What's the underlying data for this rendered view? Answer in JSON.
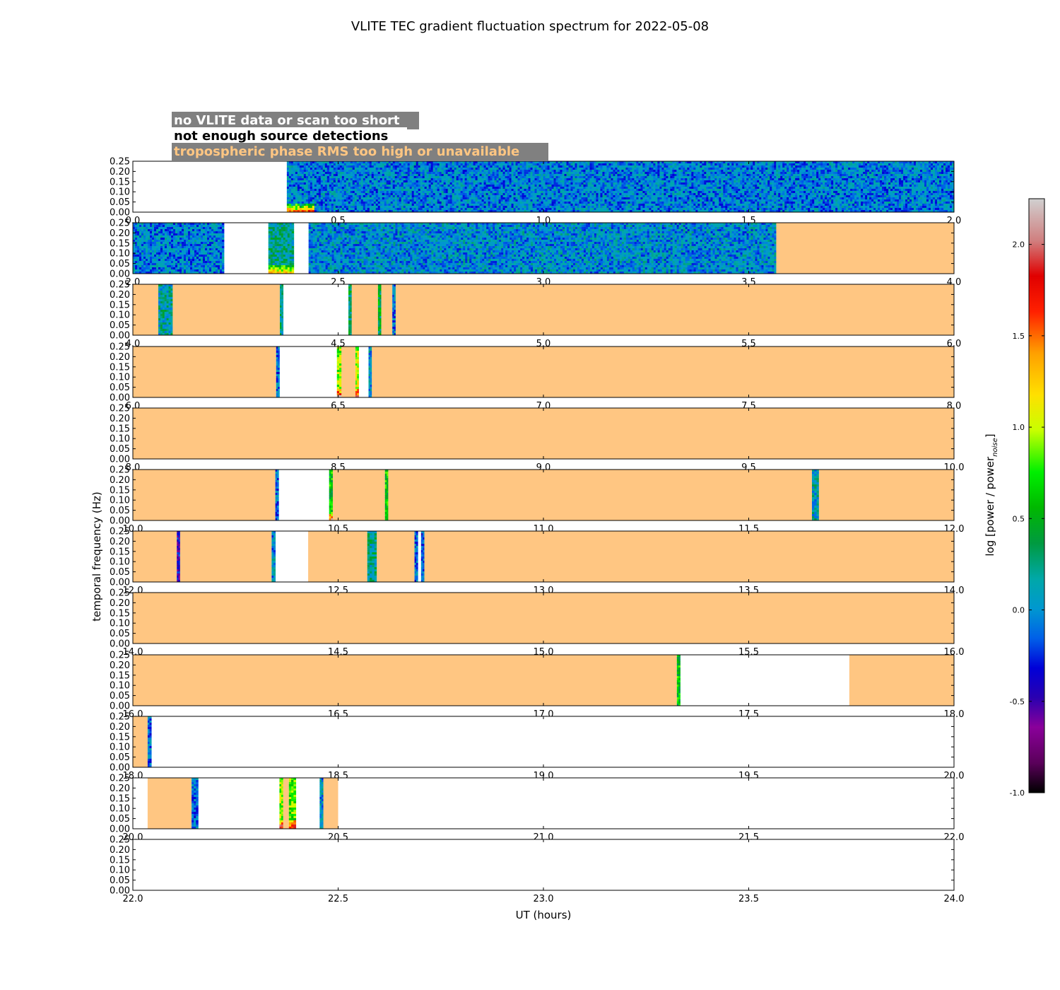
{
  "chart_data": {
    "type": "heatmap",
    "title": "VLITE TEC gradient fluctuation spectrum for 2022-05-08",
    "xlabel": "UT (hours)",
    "ylabel": "temporal frequency (Hz)",
    "colorbar_label_main": "log [power / power",
    "colorbar_label_sub": "noise",
    "colorbar_label_end": "]",
    "colorbar_range": [
      -1.0,
      2.25
    ],
    "colorbar_ticks": [
      "-1.0",
      "-0.5",
      "0.0",
      "0.5",
      "1.0",
      "1.5",
      "2.0"
    ],
    "colorbar_tick_values": [
      -1.0,
      -0.5,
      0.0,
      0.5,
      1.0,
      1.5,
      2.0
    ],
    "ylim": [
      0,
      0.25
    ],
    "yticks": [
      "0.00",
      "0.05",
      "0.10",
      "0.15",
      "0.20",
      "0.25"
    ],
    "colors": {
      "tropo_fill": "#ffc682",
      "no_data_label_bg": "#808080",
      "no_data_text": "#ffffff",
      "not_enough_text": "#000000",
      "tropo_text": "#ffc682"
    },
    "legend": [
      {
        "label": "no VLITE data or scan too short",
        "color": "#ffffff"
      },
      {
        "label": "not enough source detections",
        "color": "#000000"
      },
      {
        "label": "tropospheric phase RMS too high or unavailable",
        "color": "#ffc682"
      }
    ],
    "panels": [
      {
        "range": [
          0,
          2
        ],
        "xticks": [
          "0.0",
          "0.5",
          "1.0",
          "1.5",
          "2.0"
        ],
        "segments": [
          {
            "type": "nodata",
            "start": 0.0,
            "end": 0.375
          },
          {
            "type": "data",
            "start": 0.375,
            "end": 2.0,
            "base": -0.05,
            "low_boost_until": 0.44,
            "low_boost": 1.4
          }
        ]
      },
      {
        "range": [
          2,
          4
        ],
        "xticks": [
          "2.0",
          "2.5",
          "3.0",
          "3.5",
          "4.0"
        ],
        "segments": [
          {
            "type": "data",
            "start": 2.0,
            "end": 2.222,
            "base": -0.05
          },
          {
            "type": "nodata",
            "start": 2.222,
            "end": 2.33
          },
          {
            "type": "data",
            "start": 2.33,
            "end": 2.392,
            "base": 0.2,
            "low_boost": 0.8
          },
          {
            "type": "nodata",
            "start": 2.392,
            "end": 2.428
          },
          {
            "type": "data",
            "start": 2.428,
            "end": 3.567,
            "base": 0.0
          },
          {
            "type": "tropo",
            "start": 3.567,
            "end": 4.0
          }
        ]
      },
      {
        "range": [
          4,
          6
        ],
        "xticks": [
          "4.0",
          "4.5",
          "5.0",
          "5.5",
          "6.0"
        ],
        "segments": [
          {
            "type": "tropo",
            "start": 4.0,
            "end": 4.062
          },
          {
            "type": "data",
            "start": 4.062,
            "end": 4.097,
            "base": 0.15
          },
          {
            "type": "tropo",
            "start": 4.097,
            "end": 4.358
          },
          {
            "type": "data",
            "start": 4.358,
            "end": 4.366,
            "base": 0.2
          },
          {
            "type": "nodata",
            "start": 4.366,
            "end": 4.525
          },
          {
            "type": "data",
            "start": 4.525,
            "end": 4.533,
            "base": 0.3
          },
          {
            "type": "tropo",
            "start": 4.533,
            "end": 4.597
          },
          {
            "type": "data",
            "start": 4.597,
            "end": 4.605,
            "base": 0.4
          },
          {
            "type": "tropo",
            "start": 4.605,
            "end": 4.632
          },
          {
            "type": "data",
            "start": 4.632,
            "end": 4.64,
            "base": -0.1
          },
          {
            "type": "tropo",
            "start": 4.64,
            "end": 6.0
          }
        ]
      },
      {
        "range": [
          6,
          8
        ],
        "xticks": [
          "6.0",
          "6.5",
          "7.0",
          "7.5",
          "8.0"
        ],
        "segments": [
          {
            "type": "tropo",
            "start": 6.0,
            "end": 6.349
          },
          {
            "type": "data",
            "start": 6.349,
            "end": 6.357,
            "base": -0.1
          },
          {
            "type": "nodata",
            "start": 6.357,
            "end": 6.497
          },
          {
            "type": "data",
            "start": 6.497,
            "end": 6.508,
            "base": 0.9,
            "low_boost": 0.8
          },
          {
            "type": "tropo",
            "start": 6.508,
            "end": 6.542
          },
          {
            "type": "data",
            "start": 6.542,
            "end": 6.55,
            "base": 1.0,
            "low_boost": 0.7
          },
          {
            "type": "nodata",
            "start": 6.55,
            "end": 6.574
          },
          {
            "type": "data",
            "start": 6.574,
            "end": 6.582,
            "base": 0.0
          },
          {
            "type": "tropo",
            "start": 6.582,
            "end": 8.0
          }
        ]
      },
      {
        "range": [
          8,
          10
        ],
        "xticks": [
          "8.0",
          "8.5",
          "9.0",
          "9.5",
          "10.0"
        ],
        "segments": [
          {
            "type": "tropo",
            "start": 8.0,
            "end": 10.0
          }
        ]
      },
      {
        "range": [
          10,
          12
        ],
        "xticks": [
          "10.0",
          "10.5",
          "11.0",
          "11.5",
          "12.0"
        ],
        "segments": [
          {
            "type": "tropo",
            "start": 10.0,
            "end": 10.347
          },
          {
            "type": "data",
            "start": 10.347,
            "end": 10.355,
            "base": -0.1
          },
          {
            "type": "nodata",
            "start": 10.355,
            "end": 10.478
          },
          {
            "type": "data",
            "start": 10.478,
            "end": 10.487,
            "base": 0.6,
            "low_boost": 1.0
          },
          {
            "type": "tropo",
            "start": 10.487,
            "end": 10.614
          },
          {
            "type": "data",
            "start": 10.614,
            "end": 10.622,
            "base": 0.6
          },
          {
            "type": "tropo",
            "start": 10.622,
            "end": 11.654
          },
          {
            "type": "data",
            "start": 11.654,
            "end": 11.671,
            "base": 0.1
          },
          {
            "type": "tropo",
            "start": 11.671,
            "end": 12.0
          }
        ]
      },
      {
        "range": [
          12,
          14
        ],
        "xticks": [
          "12.0",
          "12.5",
          "13.0",
          "13.5",
          "14.0"
        ],
        "segments": [
          {
            "type": "tropo",
            "start": 12.0,
            "end": 12.107
          },
          {
            "type": "data",
            "start": 12.107,
            "end": 12.115,
            "base": -0.4
          },
          {
            "type": "tropo",
            "start": 12.115,
            "end": 12.338
          },
          {
            "type": "data",
            "start": 12.338,
            "end": 12.347,
            "base": 0.0
          },
          {
            "type": "nodata",
            "start": 12.347,
            "end": 12.427
          },
          {
            "type": "tropo",
            "start": 12.427,
            "end": 12.571
          },
          {
            "type": "data",
            "start": 12.571,
            "end": 12.594,
            "base": 0.2
          },
          {
            "type": "tropo",
            "start": 12.594,
            "end": 12.686
          },
          {
            "type": "data",
            "start": 12.686,
            "end": 12.694,
            "base": -0.1
          },
          {
            "type": "nodata",
            "start": 12.694,
            "end": 12.702
          },
          {
            "type": "data",
            "start": 12.702,
            "end": 12.71,
            "base": -0.2
          },
          {
            "type": "tropo",
            "start": 12.71,
            "end": 14.0
          }
        ]
      },
      {
        "range": [
          14,
          16
        ],
        "xticks": [
          "14.0",
          "14.5",
          "15.0",
          "15.5",
          "16.0"
        ],
        "segments": [
          {
            "type": "tropo",
            "start": 14.0,
            "end": 16.0
          }
        ]
      },
      {
        "range": [
          16,
          18
        ],
        "xticks": [
          "16.0",
          "16.5",
          "17.0",
          "17.5",
          "18.0"
        ],
        "segments": [
          {
            "type": "tropo",
            "start": 16.0,
            "end": 17.325
          },
          {
            "type": "data",
            "start": 17.325,
            "end": 17.333,
            "base": 0.6
          },
          {
            "type": "nodata",
            "start": 17.333,
            "end": 17.745
          },
          {
            "type": "tropo",
            "start": 17.745,
            "end": 18.0
          }
        ]
      },
      {
        "range": [
          18,
          20
        ],
        "xticks": [
          "18.0",
          "18.5",
          "19.0",
          "19.5",
          "20.0"
        ],
        "segments": [
          {
            "type": "tropo",
            "start": 18.0,
            "end": 18.036
          },
          {
            "type": "data",
            "start": 18.036,
            "end": 18.045,
            "base": -0.1
          },
          {
            "type": "nodata",
            "start": 18.045,
            "end": 20.0
          }
        ]
      },
      {
        "range": [
          20,
          22
        ],
        "xticks": [
          "20.0",
          "20.5",
          "21.0",
          "21.5",
          "22.0"
        ],
        "segments": [
          {
            "type": "nodata",
            "start": 20.0,
            "end": 20.036
          },
          {
            "type": "tropo",
            "start": 20.036,
            "end": 20.143
          },
          {
            "type": "data",
            "start": 20.143,
            "end": 20.159,
            "base": -0.1
          },
          {
            "type": "nodata",
            "start": 20.159,
            "end": 20.357
          },
          {
            "type": "data",
            "start": 20.357,
            "end": 20.366,
            "base": 0.9,
            "low_boost": 0.8
          },
          {
            "type": "tropo",
            "start": 20.366,
            "end": 20.38
          },
          {
            "type": "data",
            "start": 20.38,
            "end": 20.397,
            "base": 0.8,
            "low_boost": 0.8
          },
          {
            "type": "nodata",
            "start": 20.397,
            "end": 20.455
          },
          {
            "type": "data",
            "start": 20.455,
            "end": 20.464,
            "base": 0.0
          },
          {
            "type": "tropo",
            "start": 20.464,
            "end": 20.5
          },
          {
            "type": "nodata",
            "start": 20.5,
            "end": 22.0
          }
        ]
      },
      {
        "range": [
          22,
          24
        ],
        "xticks": [
          "22.0",
          "22.5",
          "23.0",
          "23.5",
          "24.0"
        ],
        "segments": [
          {
            "type": "nodata",
            "start": 22.0,
            "end": 24.0
          }
        ]
      }
    ]
  }
}
